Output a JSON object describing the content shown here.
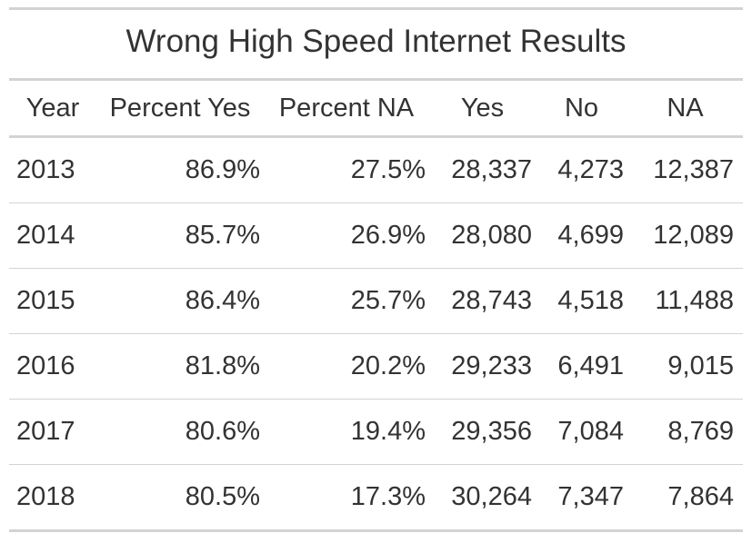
{
  "title": "Wrong High Speed Internet Results",
  "columns": [
    "Year",
    "Percent Yes",
    "Percent NA",
    "Yes",
    "No",
    "NA"
  ],
  "rows": [
    [
      "2013",
      "86.9%",
      "27.5%",
      "28,337",
      "4,273",
      "12,387"
    ],
    [
      "2014",
      "85.7%",
      "26.9%",
      "28,080",
      "4,699",
      "12,089"
    ],
    [
      "2015",
      "86.4%",
      "25.7%",
      "28,743",
      "4,518",
      "11,488"
    ],
    [
      "2016",
      "81.8%",
      "20.2%",
      "29,233",
      "6,491",
      "9,015"
    ],
    [
      "2017",
      "80.6%",
      "19.4%",
      "29,356",
      "7,084",
      "8,769"
    ],
    [
      "2018",
      "80.5%",
      "17.3%",
      "30,264",
      "7,347",
      "7,864"
    ]
  ],
  "colors": {
    "text": "#333333",
    "rule": "#d3d3d3",
    "background": "#ffffff"
  }
}
